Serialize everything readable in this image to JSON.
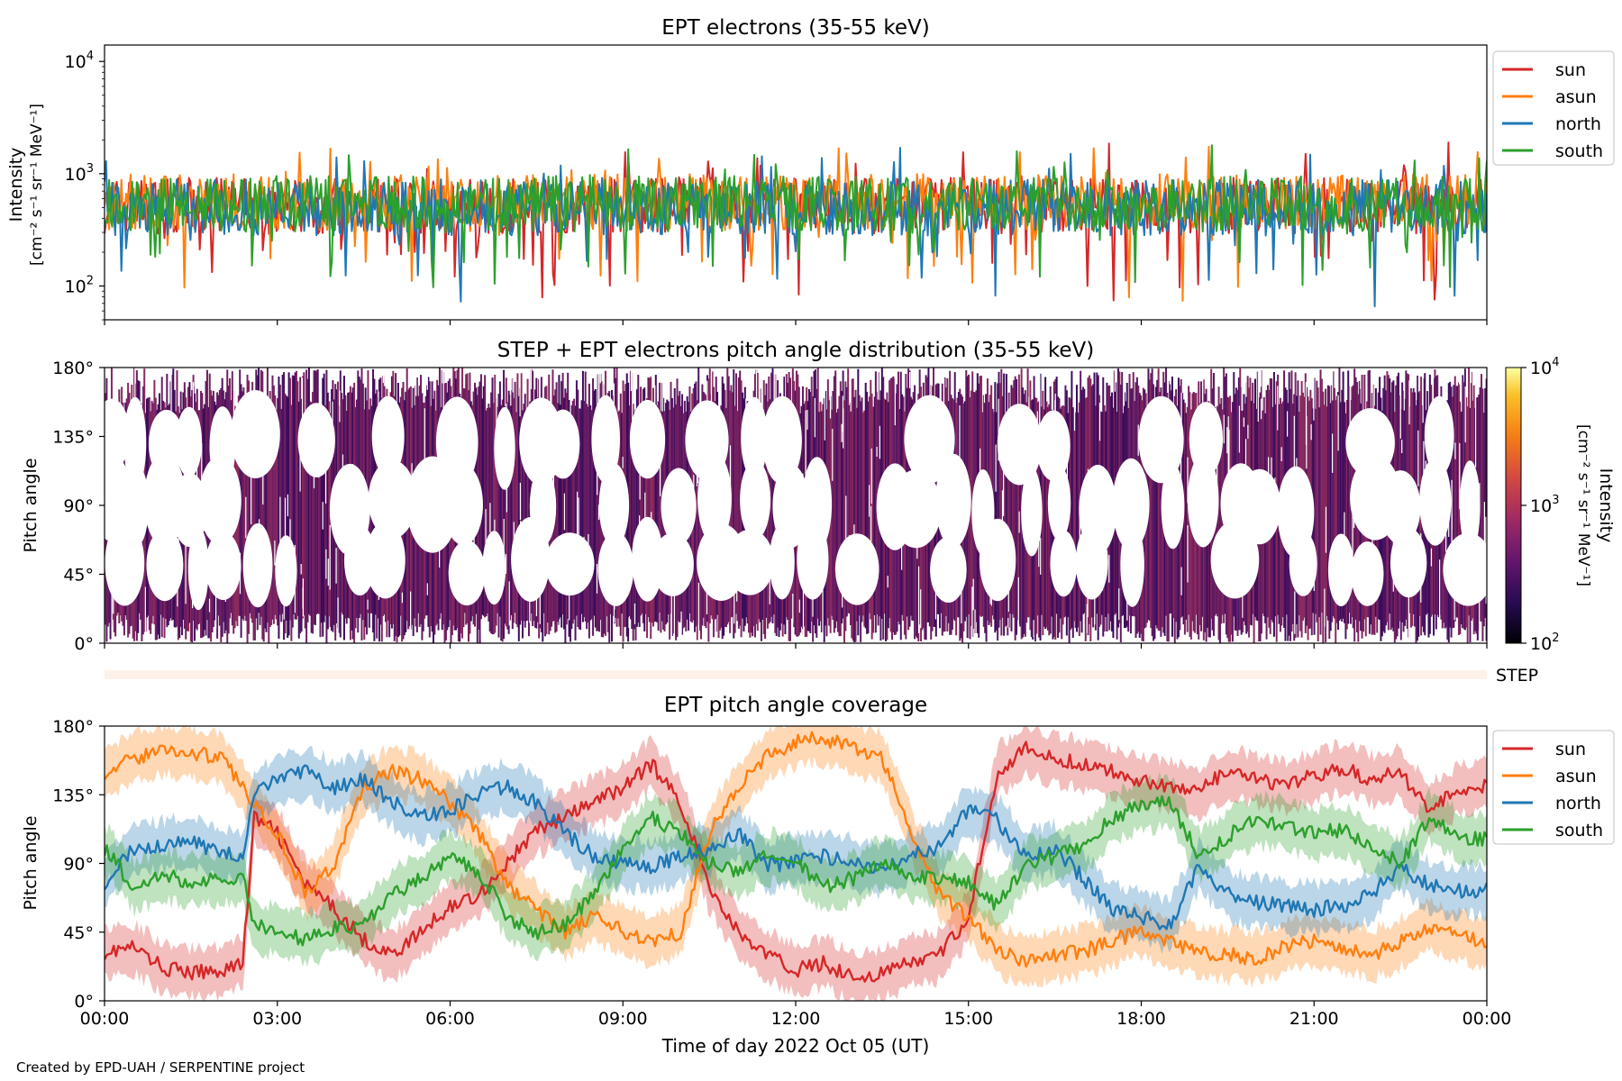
{
  "figure": {
    "footer": "Created by EPD-UAH / SERPENTINE project",
    "xlabel": "Time of day 2022 Oct 05 (UT)",
    "xticks": [
      "00:00",
      "03:00",
      "06:00",
      "09:00",
      "12:00",
      "15:00",
      "18:00",
      "21:00",
      "00:00"
    ]
  },
  "colors": {
    "sun": "#d62728",
    "asun": "#ff7f0e",
    "north": "#1f77b4",
    "south": "#2ca02c",
    "heat": "#6e1f5e"
  },
  "chart_data": [
    {
      "type": "line",
      "title": "EPT electrons (35-55 keV)",
      "ylabel": "Intensity",
      "yunit": "[cm⁻² s⁻¹ sr⁻¹ MeV⁻¹]",
      "yscale": "log",
      "ylim": [
        50,
        14000
      ],
      "yticks": [
        {
          "v": 100,
          "base": "10",
          "exp": "2"
        },
        {
          "v": 1000,
          "base": "10",
          "exp": "3"
        },
        {
          "v": 10000,
          "base": "10",
          "exp": "4"
        }
      ],
      "xlim": [
        0,
        24
      ],
      "legend_position": "upper-right-outside",
      "series": [
        {
          "name": "sun",
          "key": "sun",
          "baseline": 520
        },
        {
          "name": "asun",
          "key": "asun",
          "baseline": 560
        },
        {
          "name": "north",
          "key": "north",
          "baseline": 500
        },
        {
          "name": "south",
          "key": "south",
          "baseline": 540
        }
      ]
    },
    {
      "type": "heatmap",
      "title": "STEP + EPT electrons pitch angle distribution (35-55 keV)",
      "ylabel": "Pitch angle",
      "yticks": [
        "0°",
        "45°",
        "90°",
        "135°",
        "180°"
      ],
      "ylim": [
        0,
        180
      ],
      "xlim": [
        0,
        24
      ],
      "colorbar": {
        "label": "Intensity",
        "unit": "[cm⁻² s⁻¹ sr⁻¹ MeV⁻¹]",
        "scale": "log",
        "range": [
          100,
          10000
        ],
        "ticks": [
          {
            "base": "10",
            "exp": "2"
          },
          {
            "base": "10",
            "exp": "3"
          },
          {
            "base": "10",
            "exp": "4"
          }
        ]
      }
    },
    {
      "type": "heatmap",
      "label": "STEP",
      "xlim": [
        0,
        24
      ]
    },
    {
      "type": "line",
      "title": "EPT pitch angle coverage",
      "ylabel": "Pitch angle",
      "yticks": [
        "0°",
        "45°",
        "90°",
        "135°",
        "180°"
      ],
      "ylim": [
        0,
        180
      ],
      "xlim": [
        0,
        24
      ],
      "legend_position": "upper-right-outside",
      "series": [
        {
          "name": "sun",
          "key": "sun",
          "x": [
            0,
            0.5,
            1,
            1.5,
            2,
            2.4,
            2.6,
            3,
            3.5,
            4,
            4.5,
            5,
            5.5,
            6,
            6.5,
            7,
            7.5,
            8,
            8.5,
            9,
            9.5,
            10,
            10.5,
            11,
            11.5,
            12,
            12.5,
            13,
            13.5,
            14,
            14.5,
            15,
            15.5,
            16,
            16.5,
            17,
            17.5,
            18,
            18.5,
            19,
            19.5,
            20,
            20.5,
            21,
            21.5,
            22,
            22.5,
            23,
            23.5,
            24
          ],
          "y": [
            32,
            35,
            22,
            18,
            20,
            25,
            120,
            110,
            75,
            60,
            40,
            30,
            45,
            62,
            70,
            90,
            112,
            120,
            130,
            140,
            155,
            130,
            75,
            45,
            30,
            20,
            25,
            15,
            18,
            25,
            30,
            55,
            150,
            165,
            158,
            155,
            150,
            145,
            140,
            138,
            150,
            145,
            140,
            148,
            152,
            145,
            150,
            125,
            138,
            142
          ]
        },
        {
          "name": "asun",
          "key": "asun",
          "x": [
            0,
            0.5,
            1,
            1.5,
            2,
            2.4,
            2.6,
            3,
            3.5,
            4,
            4.5,
            5,
            5.5,
            6,
            6.5,
            7,
            7.5,
            8,
            8.5,
            9,
            9.5,
            10,
            10.5,
            11,
            11.5,
            12,
            12.5,
            13,
            13.5,
            14,
            14.5,
            15,
            15.5,
            16,
            16.5,
            17,
            17.5,
            18,
            18.5,
            19,
            19.5,
            20,
            20.5,
            21,
            21.5,
            22,
            22.5,
            23,
            23.5,
            24
          ],
          "y": [
            150,
            158,
            165,
            162,
            160,
            140,
            130,
            110,
            70,
            90,
            140,
            150,
            145,
            130,
            110,
            75,
            60,
            45,
            55,
            45,
            40,
            45,
            110,
            140,
            160,
            170,
            172,
            165,
            160,
            110,
            70,
            55,
            35,
            25,
            30,
            32,
            40,
            45,
            38,
            32,
            30,
            28,
            35,
            40,
            35,
            30,
            38,
            48,
            42,
            38
          ]
        },
        {
          "name": "north",
          "key": "north",
          "x": [
            0,
            0.5,
            1,
            1.5,
            2,
            2.4,
            2.6,
            3,
            3.5,
            4,
            4.5,
            5,
            5.5,
            6,
            6.5,
            7,
            7.5,
            8,
            8.5,
            9,
            9.5,
            10,
            10.5,
            11,
            11.5,
            12,
            12.5,
            13,
            13.5,
            14,
            14.5,
            15,
            15.5,
            16,
            16.5,
            17,
            17.5,
            18,
            18.5,
            19,
            19.5,
            20,
            20.5,
            21,
            21.5,
            22,
            22.5,
            23,
            23.5,
            24
          ],
          "y": [
            78,
            100,
            102,
            104,
            98,
            95,
            135,
            145,
            150,
            140,
            145,
            130,
            120,
            125,
            135,
            140,
            130,
            110,
            95,
            90,
            88,
            95,
            100,
            110,
            88,
            92,
            95,
            90,
            85,
            95,
            100,
            125,
            118,
            95,
            100,
            80,
            60,
            55,
            50,
            88,
            70,
            65,
            62,
            60,
            62,
            70,
            88,
            75,
            72,
            73
          ]
        },
        {
          "name": "south",
          "key": "south",
          "x": [
            0,
            0.5,
            1,
            1.5,
            2,
            2.4,
            2.6,
            3,
            3.5,
            4,
            4.5,
            5,
            5.5,
            6,
            6.5,
            7,
            7.5,
            8,
            8.5,
            9,
            9.5,
            10,
            10.5,
            11,
            11.5,
            12,
            12.5,
            13,
            13.5,
            14,
            14.5,
            15,
            15.5,
            16,
            16.5,
            17,
            17.5,
            18,
            18.5,
            19,
            19.5,
            20,
            20.5,
            21,
            21.5,
            22,
            22.5,
            23,
            23.5,
            24
          ],
          "y": [
            100,
            75,
            82,
            78,
            80,
            80,
            50,
            45,
            40,
            48,
            50,
            70,
            80,
            95,
            85,
            55,
            45,
            50,
            70,
            100,
            120,
            110,
            90,
            85,
            95,
            90,
            75,
            80,
            90,
            82,
            80,
            78,
            62,
            88,
            95,
            100,
            120,
            128,
            130,
            95,
            108,
            118,
            115,
            110,
            112,
            100,
            90,
            120,
            108,
            106
          ]
        }
      ]
    }
  ]
}
